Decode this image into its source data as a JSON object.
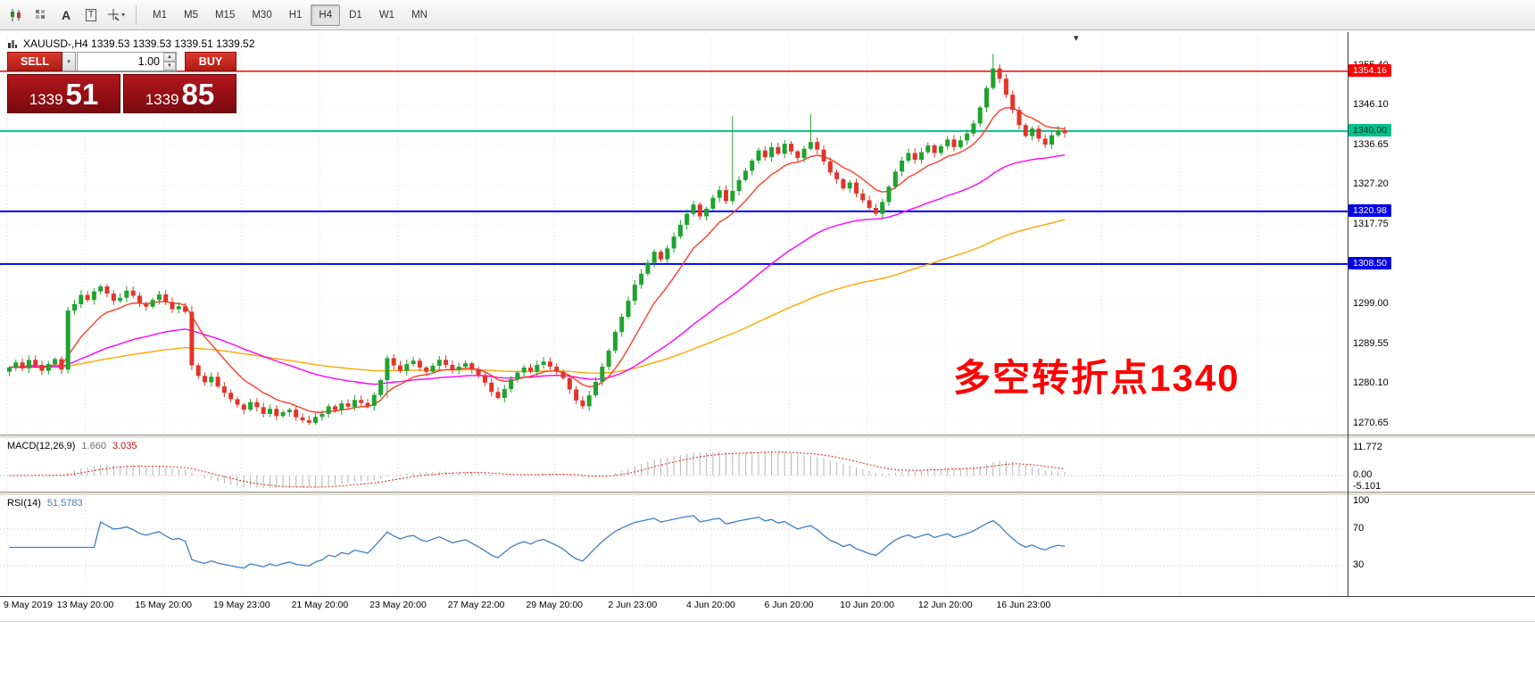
{
  "toolbar": {
    "text_a": "A",
    "text_t": "T",
    "caret_down": "▾",
    "spin_up": "▲",
    "spin_down": "▼",
    "timeframes": [
      "M1",
      "M5",
      "M15",
      "M30",
      "H1",
      "H4",
      "D1",
      "W1",
      "MN"
    ],
    "active_timeframe": "H4"
  },
  "chart": {
    "header": "XAUUSD-,H4  1339.53 1339.53 1339.51 1339.52",
    "annotation": "多空转折点1340",
    "shift_marker": "▾"
  },
  "trade_panel": {
    "sell_label": "SELL",
    "buy_label": "BUY",
    "volume": "1.00",
    "sell_price": {
      "prefix": "1339",
      "large": "51"
    },
    "buy_price": {
      "prefix": "1339",
      "large": "85"
    }
  },
  "indicators": {
    "macd": {
      "label": "MACD(12,26,9)",
      "value_main": "1.660",
      "value_signal": "3.035",
      "axis": [
        {
          "v": 11.772,
          "label": "11.772"
        },
        {
          "v": 0,
          "label": "0.00"
        },
        {
          "v": -5.101,
          "label": "-5.101"
        }
      ]
    },
    "rsi": {
      "label": "RSI(14)",
      "value": "51.5783",
      "axis": [
        {
          "v": 100,
          "label": "100"
        },
        {
          "v": 70,
          "label": "70"
        },
        {
          "v": 30,
          "label": "30"
        }
      ]
    }
  },
  "chart_data": {
    "type": "candlestick",
    "symbol": "XAUUSD-",
    "timeframe": "H4",
    "ohlc_header": {
      "open": 1339.53,
      "high": 1339.53,
      "low": 1339.51,
      "close": 1339.52
    },
    "up_color": "#1fa32f",
    "down_color": "#e2342a",
    "y_ticks": [
      1355.4,
      1346.1,
      1336.65,
      1327.2,
      1317.75,
      1299.0,
      1289.55,
      1280.1,
      1270.65
    ],
    "hlines": [
      {
        "price": 1354.16,
        "color": "#ff0000",
        "width": 1.5,
        "badge_text": "1354.16",
        "badge_bg": "#ff0000",
        "badge_fg": "#ffffff"
      },
      {
        "price": 1340.0,
        "color": "#00c08b",
        "width": 2,
        "badge_text": "1340.00",
        "badge_bg": "#00c08b",
        "badge_fg": "#00322a"
      },
      {
        "price": 1320.98,
        "color": "#0000ff",
        "width": 2,
        "badge_text": "1320.98",
        "badge_bg": "#0000ee",
        "badge_fg": "#ffffff"
      },
      {
        "price": 1308.5,
        "color": "#0000ff",
        "width": 2,
        "badge_text": "1308.50",
        "badge_bg": "#0000ee",
        "badge_fg": "#ffffff"
      }
    ],
    "x_labels": [
      {
        "text": "9 May 2019",
        "index": 0
      },
      {
        "text": "13 May 20:00",
        "index": 12
      },
      {
        "text": "15 May 20:00",
        "index": 24
      },
      {
        "text": "19 May 23:00",
        "index": 36
      },
      {
        "text": "21 May 20:00",
        "index": 48
      },
      {
        "text": "23 May 20:00",
        "index": 60
      },
      {
        "text": "27 May 22:00",
        "index": 72
      },
      {
        "text": "29 May 20:00",
        "index": 84
      },
      {
        "text": "2 Jun 23:00",
        "index": 96
      },
      {
        "text": "4 Jun 20:00",
        "index": 108
      },
      {
        "text": "6 Jun 20:00",
        "index": 120
      },
      {
        "text": "10 Jun 20:00",
        "index": 132
      },
      {
        "text": "12 Jun 20:00",
        "index": 144
      },
      {
        "text": "16 Jun 23:00",
        "index": 156
      }
    ],
    "first_open": 1283.0,
    "closes": [
      1284.0,
      1285.2,
      1283.8,
      1285.8,
      1284.6,
      1283.2,
      1284.8,
      1286.0,
      1283.5,
      1297.5,
      1299.0,
      1301.2,
      1300.0,
      1302.0,
      1303.2,
      1301.5,
      1299.8,
      1300.5,
      1302.2,
      1301.0,
      1299.2,
      1298.4,
      1300.0,
      1301.3,
      1299.5,
      1297.8,
      1298.5,
      1297.2,
      1284.5,
      1282.0,
      1280.5,
      1281.8,
      1279.5,
      1278.0,
      1276.5,
      1275.2,
      1274.0,
      1275.8,
      1274.6,
      1273.0,
      1274.2,
      1272.5,
      1273.4,
      1274.0,
      1272.2,
      1271.5,
      1270.9,
      1272.3,
      1273.0,
      1274.8,
      1273.9,
      1275.5,
      1274.7,
      1276.3,
      1275.6,
      1274.9,
      1277.5,
      1281.0,
      1286.2,
      1284.5,
      1283.2,
      1284.8,
      1285.6,
      1284.0,
      1283.0,
      1284.4,
      1285.8,
      1284.6,
      1283.4,
      1284.2,
      1285.0,
      1283.6,
      1282.2,
      1280.4,
      1278.2,
      1276.8,
      1278.9,
      1281.2,
      1282.8,
      1284.0,
      1283.0,
      1284.6,
      1285.4,
      1284.2,
      1283.0,
      1281.5,
      1278.8,
      1276.2,
      1274.8,
      1277.4,
      1280.6,
      1284.2,
      1288.0,
      1292.4,
      1296.0,
      1299.8,
      1303.6,
      1306.2,
      1308.8,
      1311.4,
      1309.6,
      1312.2,
      1315.0,
      1317.8,
      1320.4,
      1322.6,
      1319.8,
      1321.6,
      1324.2,
      1326.0,
      1323.4,
      1325.8,
      1328.4,
      1330.6,
      1333.0,
      1335.4,
      1333.8,
      1336.2,
      1334.6,
      1337.0,
      1335.2,
      1333.6,
      1335.8,
      1337.4,
      1335.6,
      1332.8,
      1330.2,
      1328.6,
      1326.4,
      1327.8,
      1325.2,
      1323.6,
      1321.8,
      1320.4,
      1323.2,
      1326.8,
      1330.4,
      1333.0,
      1334.8,
      1333.2,
      1335.0,
      1336.6,
      1334.8,
      1336.4,
      1338.0,
      1336.2,
      1337.8,
      1339.4,
      1341.8,
      1345.6,
      1350.2,
      1354.8,
      1352.4,
      1348.6,
      1345.0,
      1341.4,
      1338.8,
      1340.6,
      1338.2,
      1336.8,
      1339.0,
      1340.2,
      1339.5
    ],
    "extremes": {
      "9": {
        "low": 1282.6
      },
      "28": {
        "high": 1298.6
      },
      "46": {
        "low": 1270.4
      },
      "58": {
        "low": 1276.8
      },
      "111": {
        "high": 1343.5
      },
      "123": {
        "high": 1344.0
      },
      "151": {
        "high": 1358.3
      }
    },
    "ma": [
      {
        "period": 10,
        "color": "#ff3c28"
      },
      {
        "period": 45,
        "color": "#ff00ff"
      },
      {
        "period": 110,
        "color": "#ffa500"
      }
    ],
    "macd_params": {
      "fast": 12,
      "slow": 26,
      "signal": 9,
      "histogram_color": "#b4b4b4",
      "signal_color": "#e02020"
    },
    "rsi_params": {
      "period": 14,
      "color": "#3f7fc1",
      "levels": [
        70,
        30
      ]
    }
  }
}
